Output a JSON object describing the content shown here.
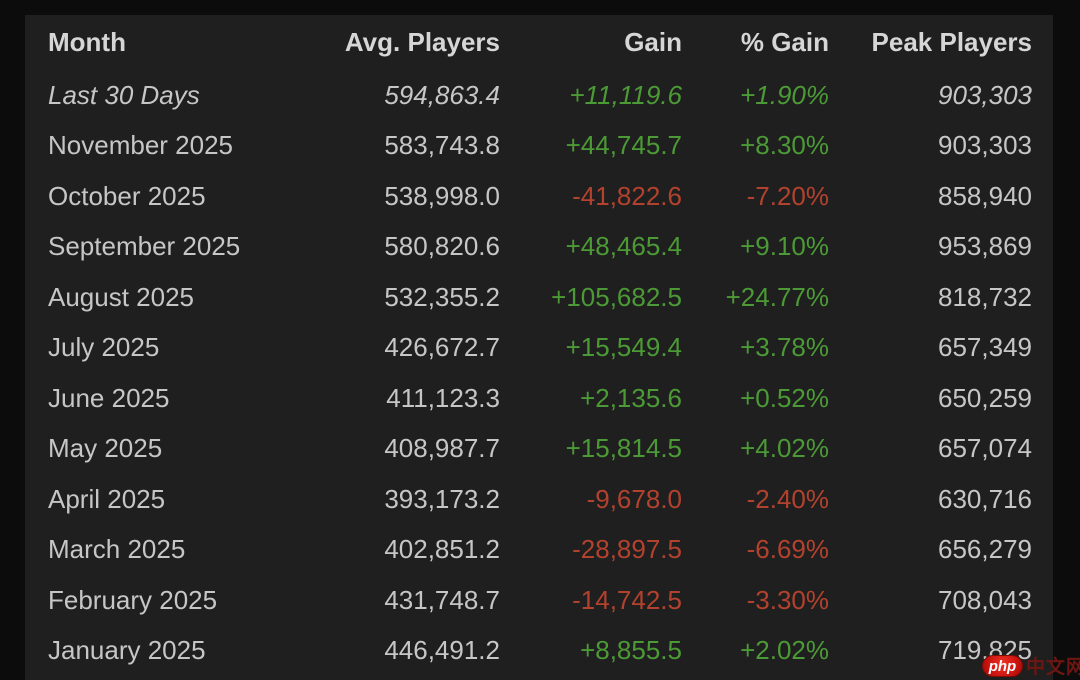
{
  "table": {
    "columns": [
      "Month",
      "Avg. Players",
      "Gain",
      "% Gain",
      "Peak Players"
    ],
    "rows": [
      {
        "month": "Last 30 Days",
        "avg": "594,863.4",
        "gain": "+11,119.6",
        "pct": "+1.90%",
        "peak": "903,303"
      },
      {
        "month": "November 2025",
        "avg": "583,743.8",
        "gain": "+44,745.7",
        "pct": "+8.30%",
        "peak": "903,303"
      },
      {
        "month": "October 2025",
        "avg": "538,998.0",
        "gain": "-41,822.6",
        "pct": "-7.20%",
        "peak": "858,940"
      },
      {
        "month": "September 2025",
        "avg": "580,820.6",
        "gain": "+48,465.4",
        "pct": "+9.10%",
        "peak": "953,869"
      },
      {
        "month": "August 2025",
        "avg": "532,355.2",
        "gain": "+105,682.5",
        "pct": "+24.77%",
        "peak": "818,732"
      },
      {
        "month": "July 2025",
        "avg": "426,672.7",
        "gain": "+15,549.4",
        "pct": "+3.78%",
        "peak": "657,349"
      },
      {
        "month": "June 2025",
        "avg": "411,123.3",
        "gain": "+2,135.6",
        "pct": "+0.52%",
        "peak": "650,259"
      },
      {
        "month": "May 2025",
        "avg": "408,987.7",
        "gain": "+15,814.5",
        "pct": "+4.02%",
        "peak": "657,074"
      },
      {
        "month": "April 2025",
        "avg": "393,173.2",
        "gain": "-9,678.0",
        "pct": "-2.40%",
        "peak": "630,716"
      },
      {
        "month": "March 2025",
        "avg": "402,851.2",
        "gain": "-28,897.5",
        "pct": "-6.69%",
        "peak": "656,279"
      },
      {
        "month": "February 2025",
        "avg": "431,748.7",
        "gain": "-14,742.5",
        "pct": "-3.30%",
        "peak": "708,043"
      },
      {
        "month": "January 2025",
        "avg": "446,491.2",
        "gain": "+8,855.5",
        "pct": "+2.02%",
        "peak": "719,825"
      }
    ]
  },
  "colors": {
    "gain_positive": "#4c9a36",
    "gain_negative": "#b2422e",
    "panel_background": "#1f1f1f",
    "page_background": "#0c0c0c",
    "header_text": "#d6d6d6",
    "cell_text": "#c6c6c6",
    "watermark_red": "#cc1410"
  },
  "watermark": {
    "badge": "php",
    "site": "中文网"
  }
}
